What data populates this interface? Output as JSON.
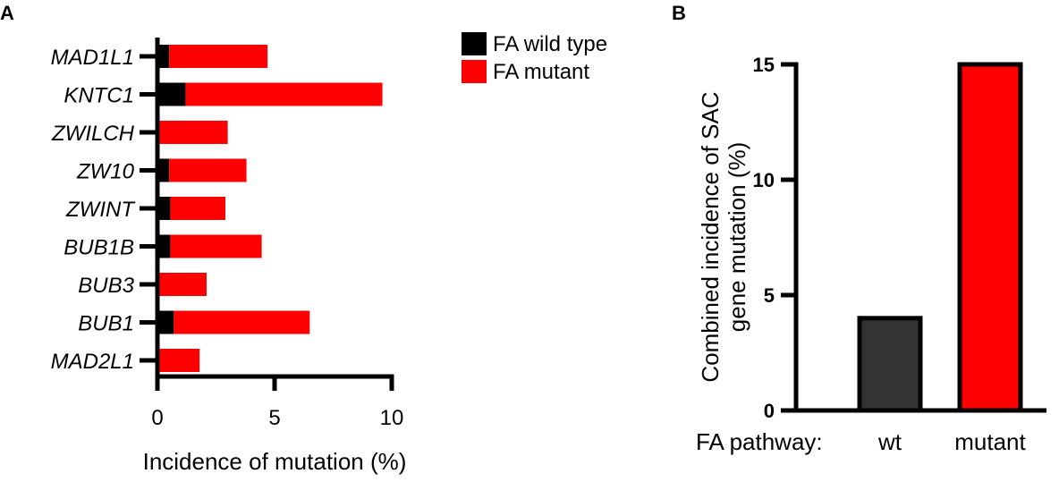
{
  "colors": {
    "wild_type": "#000000",
    "mutant": "#ff0000",
    "wt_bar": "#333333",
    "axis": "#000000"
  },
  "chart_data": [
    {
      "panel": "A",
      "type": "bar",
      "orientation": "horizontal",
      "stacked": true,
      "categories": [
        "MAD1L1",
        "KNTC1",
        "ZWILCH",
        "ZW10",
        "ZWINT",
        "BUB1B",
        "BUB3",
        "BUB1",
        "MAD2L1"
      ],
      "series": [
        {
          "name": "FA wild type",
          "color": "#000000",
          "values": [
            0.5,
            1.2,
            0.1,
            0.5,
            0.55,
            0.55,
            0.1,
            0.7,
            0.1
          ]
        },
        {
          "name": "FA mutant",
          "color": "#ff0000",
          "values": [
            4.2,
            8.4,
            2.9,
            3.3,
            2.35,
            3.9,
            2.0,
            5.8,
            1.7
          ]
        }
      ],
      "xlabel": "Incidence of mutation (%)",
      "xlim": [
        0,
        10
      ],
      "xticks": [
        "0",
        "5",
        "10"
      ],
      "legend_position": "top-right"
    },
    {
      "panel": "B",
      "type": "bar",
      "categories": [
        "wt",
        "mutant"
      ],
      "values": [
        4,
        15
      ],
      "colors": [
        "#333333",
        "#ff0000"
      ],
      "ylabel_lines": [
        "Combined incidence of SAC",
        "gene mutation (%)"
      ],
      "ylim": [
        0,
        15
      ],
      "yticks": [
        "0",
        "5",
        "10",
        "15"
      ],
      "xlabel": "FA pathway:"
    }
  ]
}
